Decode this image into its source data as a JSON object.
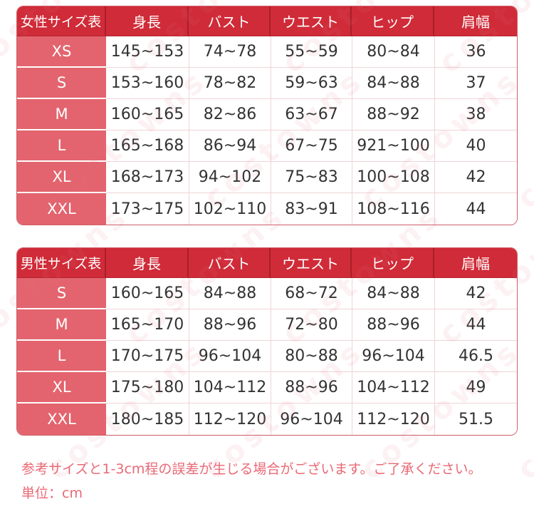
{
  "colors": {
    "header_red": "#d02b38",
    "header_divider_red": "#a81f2c",
    "size_cell_pink": "#e3646e",
    "body_divider_pink": "#f0d4d7",
    "outer_border_pink": "#cf5e69",
    "note_pink": "#e96975",
    "body_text": "#333333"
  },
  "tables": [
    {
      "title": "女性サイズ表",
      "columns": [
        "身長",
        "バスト",
        "ウエスト",
        "ヒップ",
        "肩幅"
      ],
      "rows": [
        {
          "size": "XS",
          "values": [
            "145~153",
            "74~78",
            "55~59",
            "80~84",
            "36"
          ]
        },
        {
          "size": "S",
          "values": [
            "153~160",
            "78~82",
            "59~63",
            "84~88",
            "37"
          ]
        },
        {
          "size": "M",
          "values": [
            "160~165",
            "82~86",
            "63~67",
            "88~92",
            "38"
          ]
        },
        {
          "size": "L",
          "values": [
            "165~168",
            "86~94",
            "67~75",
            "921~100",
            "40"
          ]
        },
        {
          "size": "XL",
          "values": [
            "168~173",
            "94~102",
            "75~83",
            "100~108",
            "42"
          ]
        },
        {
          "size": "XXL",
          "values": [
            "173~175",
            "102~110",
            "83~91",
            "108~116",
            "44"
          ]
        }
      ]
    },
    {
      "title": "男性サイズ表",
      "columns": [
        "身長",
        "バスト",
        "ウエスト",
        "ヒップ",
        "肩幅"
      ],
      "rows": [
        {
          "size": "S",
          "values": [
            "160~165",
            "84~88",
            "68~72",
            "84~88",
            "42"
          ]
        },
        {
          "size": "M",
          "values": [
            "165~170",
            "88~96",
            "72~80",
            "88~96",
            "44"
          ]
        },
        {
          "size": "L",
          "values": [
            "170~175",
            "96~104",
            "80~88",
            "96~104",
            "46.5"
          ]
        },
        {
          "size": "XL",
          "values": [
            "175~180",
            "104~112",
            "88~96",
            "104~112",
            "49"
          ]
        },
        {
          "size": "XXL",
          "values": [
            "180~185",
            "112~120",
            "96~104",
            "112~120",
            "51.5"
          ]
        }
      ]
    }
  ],
  "notes": {
    "tolerance": "参考サイズと1-3cm程の誤差が生じる場合がございます。ご了承ください。",
    "unit": "単位：cm"
  },
  "watermark": {
    "text": "costowns"
  }
}
